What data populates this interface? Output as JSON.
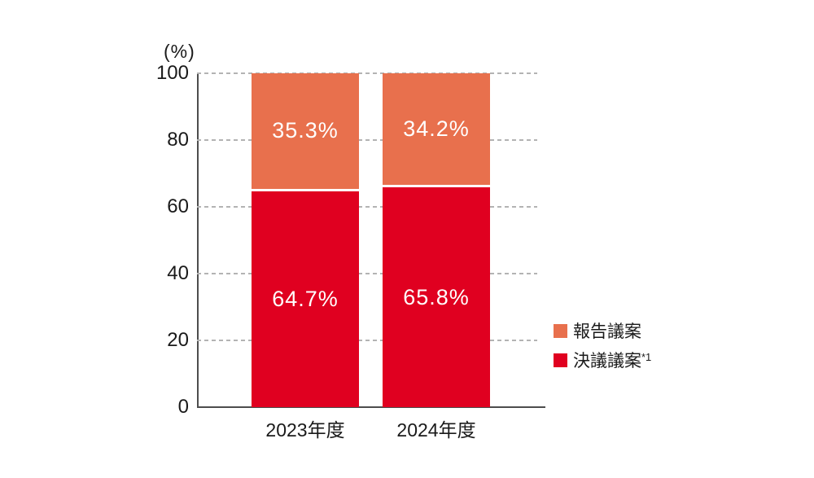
{
  "chart_data": {
    "type": "bar",
    "stacked": true,
    "unit_label": "(%)",
    "categories": [
      "2023年度",
      "2024年度"
    ],
    "series": [
      {
        "name": "決議議案",
        "name_suffix": "*1",
        "color": "#e00020",
        "values": [
          64.7,
          65.8
        ],
        "labels": [
          "64.7%",
          "65.8%"
        ]
      },
      {
        "name": "報告議案",
        "name_suffix": "",
        "color": "#e8704d",
        "values": [
          35.3,
          34.2
        ],
        "labels": [
          "35.3%",
          "34.2%"
        ]
      }
    ],
    "ylim": [
      0,
      100
    ],
    "yticks": [
      0,
      20,
      40,
      60,
      80,
      100
    ],
    "grid": "dashed-horizontal",
    "legend_position": "right",
    "legend": [
      {
        "label": "報告議案",
        "suffix": "",
        "color": "#e8704d"
      },
      {
        "label": "決議議案",
        "suffix": "*1",
        "color": "#e00020"
      }
    ]
  },
  "colors": {
    "report_segment": "#e8704d",
    "resolution_segment": "#e00020",
    "gridline": "#b3b3b3",
    "axis": "#4d4d4d",
    "text": "#1a1a1a",
    "bar_value_text": "#ffffff",
    "background": "#ffffff"
  }
}
